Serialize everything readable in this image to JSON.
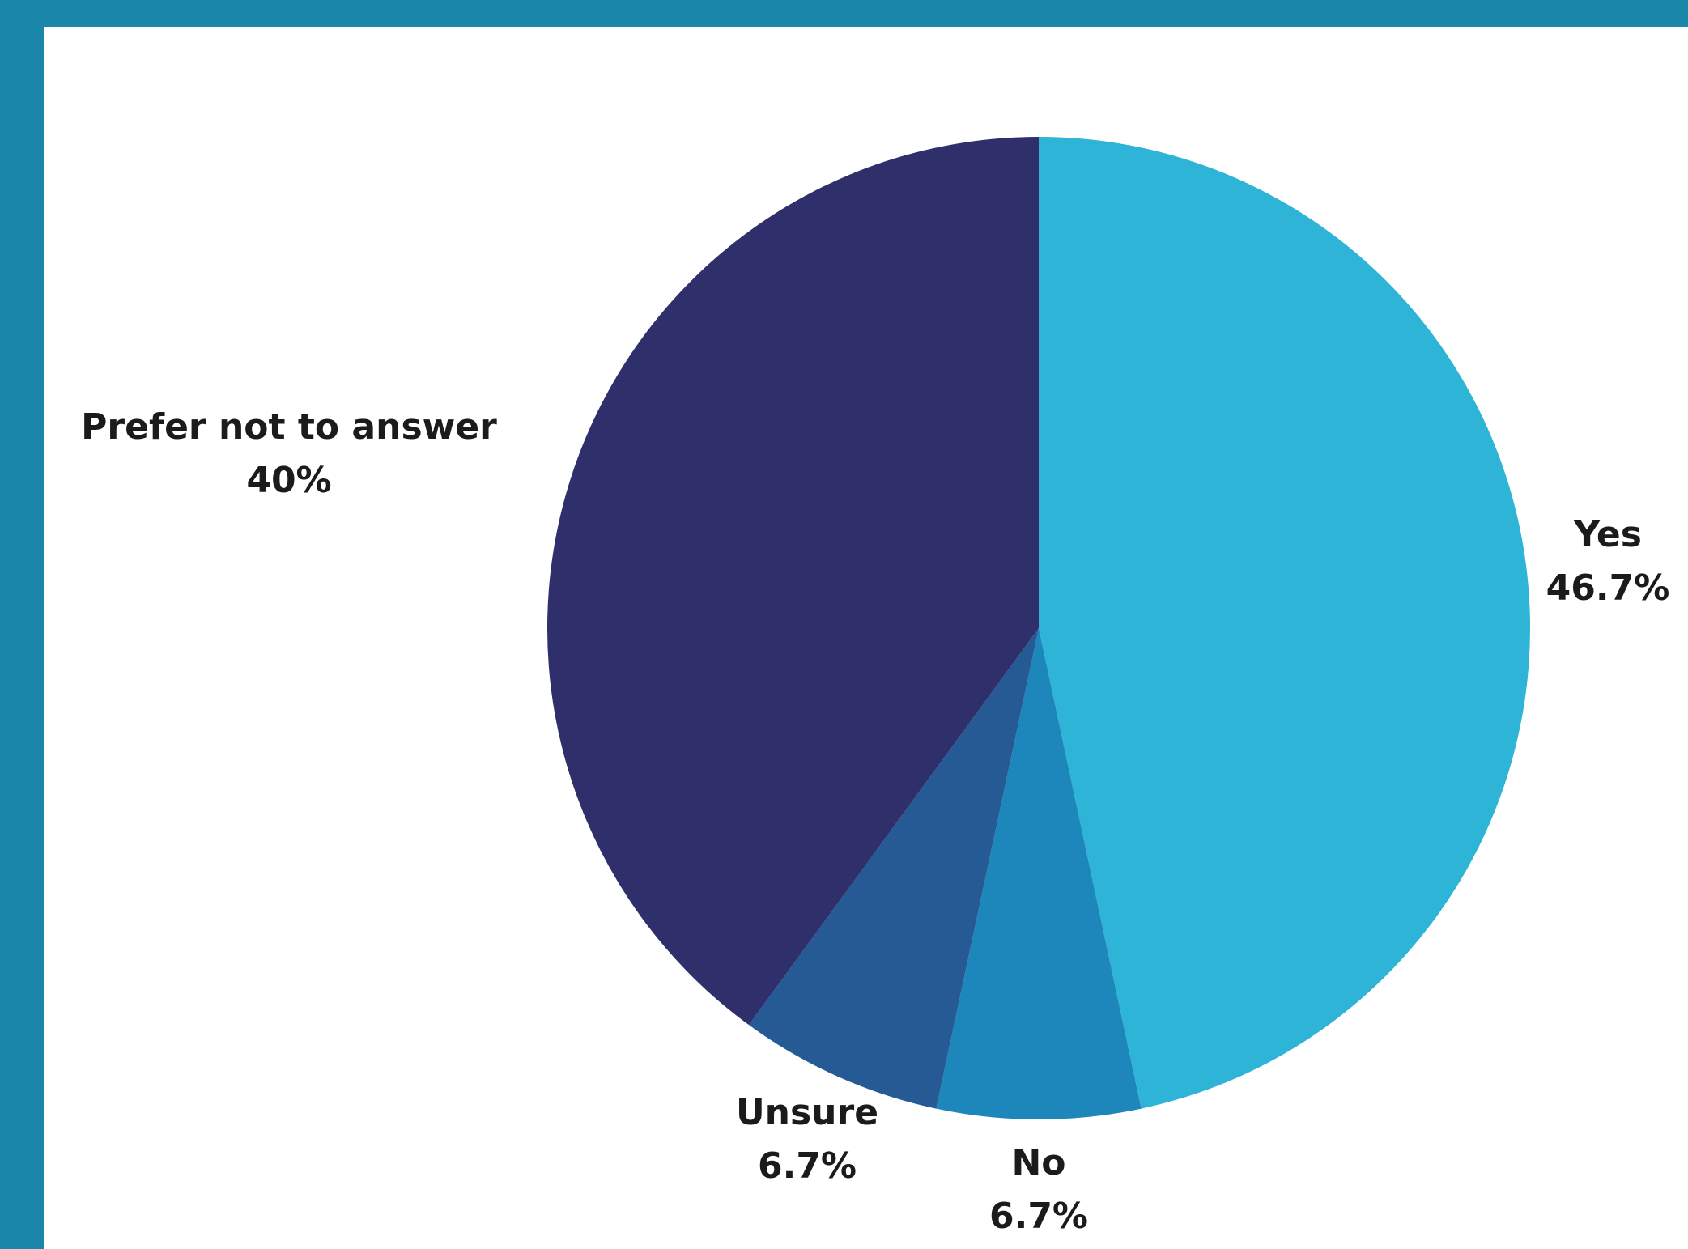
{
  "colors": {
    "frame": "#1a86aa",
    "background": "#ffffff"
  },
  "chart_data": {
    "type": "pie",
    "title": "",
    "start_angle_deg": 0,
    "direction": "clockwise",
    "slices": [
      {
        "label": "Yes",
        "value_label": "46.7%",
        "value": 46.7,
        "color": "#2db4d6"
      },
      {
        "label": "No",
        "value_label": "6.7%",
        "value": 6.7,
        "color": "#1d87bc"
      },
      {
        "label": "Unsure",
        "value_label": "6.7%",
        "value": 6.7,
        "color": "#265a94"
      },
      {
        "label": "Prefer not to answer",
        "value_label": "40%",
        "value": 40.0,
        "color": "#2e2f6b"
      }
    ]
  }
}
